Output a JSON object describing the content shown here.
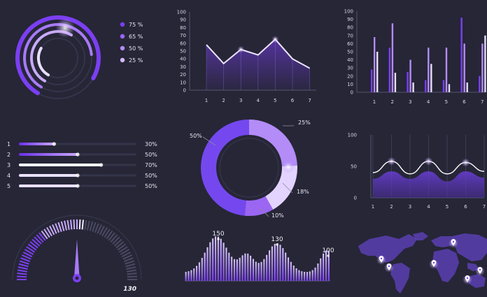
{
  "colors": {
    "background": "#262637",
    "accent": "#7b3ff2",
    "accent_light": "#b38cf7",
    "accent_pale": "#d9c6ff",
    "accent_white": "#f1eaff",
    "grid": "#3a3a50"
  },
  "chart_data": [
    {
      "type": "radial-bar",
      "series": [
        {
          "label": "75 %",
          "value": 75
        },
        {
          "label": "65 %",
          "value": 65
        },
        {
          "label": "50 %",
          "value": 50
        },
        {
          "label": "25 %",
          "value": 25
        }
      ]
    },
    {
      "type": "line",
      "x": [
        1,
        2,
        3,
        4,
        5,
        6,
        7
      ],
      "y": [
        58,
        34,
        52,
        45,
        65,
        40,
        28
      ],
      "ylim": [
        0,
        100
      ],
      "yticks": [
        "0",
        "10",
        "20",
        "30",
        "40",
        "50",
        "60",
        "70",
        "80",
        "90",
        "100"
      ],
      "xticks": [
        "1",
        "2",
        "3",
        "4",
        "5",
        "6",
        "7"
      ]
    },
    {
      "type": "bar",
      "categories": [
        "1",
        "2",
        "3",
        "4",
        "5",
        "6",
        "7"
      ],
      "ylim": [
        0,
        100
      ],
      "yticks": [
        "0",
        "10",
        "20",
        "30",
        "40",
        "50",
        "60",
        "70",
        "80",
        "90",
        "100"
      ],
      "series": [
        {
          "values": [
            28,
            55,
            25,
            15,
            15,
            92,
            20
          ]
        },
        {
          "values": [
            68,
            85,
            40,
            55,
            55,
            60,
            60
          ]
        },
        {
          "values": [
            50,
            24,
            12,
            35,
            10,
            12,
            70
          ]
        }
      ]
    },
    {
      "type": "progress-bars",
      "items": [
        {
          "index": "1",
          "value": 30,
          "label": "30%"
        },
        {
          "index": "2",
          "value": 50,
          "label": "50%"
        },
        {
          "index": "3",
          "value": 70,
          "label": "70%"
        },
        {
          "index": "4",
          "value": 50,
          "label": "50%"
        },
        {
          "index": "5",
          "value": 50,
          "label": "50%"
        }
      ]
    },
    {
      "type": "pie",
      "slices": [
        {
          "label": "25%",
          "value": 25
        },
        {
          "label": "18%",
          "value": 18
        },
        {
          "label": "10%",
          "value": 10
        },
        {
          "label": "50%",
          "value": 50
        }
      ]
    },
    {
      "type": "area",
      "x": [
        1,
        2,
        3,
        4,
        5,
        6,
        7
      ],
      "ylim": [
        0,
        100
      ],
      "yticks": [
        "0",
        "50",
        "100"
      ],
      "xticks": [
        "1",
        "2",
        "3",
        "4",
        "5",
        "6",
        "7"
      ],
      "series": [
        {
          "values": [
            40,
            58,
            38,
            58,
            38,
            56,
            42
          ]
        },
        {
          "values": [
            30,
            42,
            30,
            42,
            26,
            42,
            32
          ]
        }
      ]
    },
    {
      "type": "gauge",
      "value": 130,
      "label": "130",
      "max": 260
    },
    {
      "type": "bar",
      "subtype": "wave",
      "annotations": [
        "150",
        "130",
        "100"
      ]
    },
    {
      "type": "map",
      "markers": 6
    }
  ]
}
